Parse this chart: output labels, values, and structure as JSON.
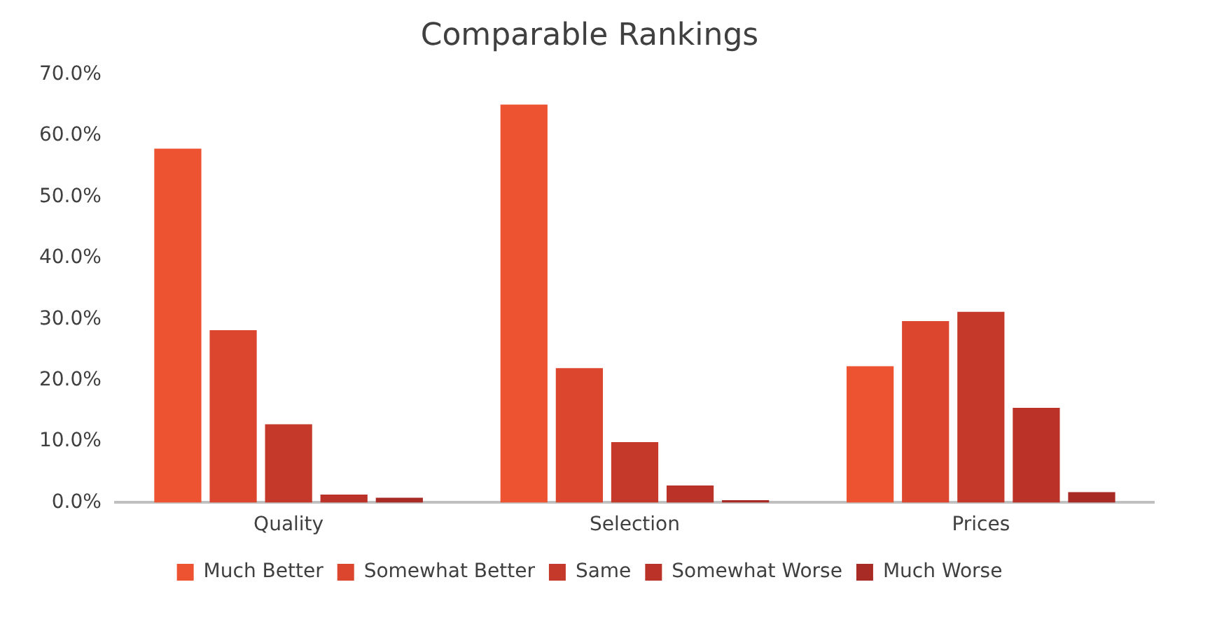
{
  "chart_data": {
    "type": "bar",
    "title": "Comparable Rankings",
    "categories": [
      "Quality",
      "Selection",
      "Prices"
    ],
    "series": [
      {
        "name": "Much Better",
        "color": "#ee5331",
        "values": [
          57.9,
          65.1,
          22.3
        ]
      },
      {
        "name": "Somewhat Better",
        "color": "#dc462e",
        "values": [
          28.2,
          22.0,
          29.7
        ]
      },
      {
        "name": "Same",
        "color": "#c4392a",
        "values": [
          12.8,
          9.9,
          31.2
        ]
      },
      {
        "name": "Somewhat Worse",
        "color": "#bb3328",
        "values": [
          1.3,
          2.8,
          15.5
        ]
      },
      {
        "name": "Much Worse",
        "color": "#a82b26",
        "values": [
          0.8,
          0.4,
          1.7
        ]
      }
    ],
    "ylim": [
      0,
      70
    ],
    "yticks": [
      {
        "value": 0,
        "label": "0.0%"
      },
      {
        "value": 10,
        "label": "10.0%"
      },
      {
        "value": 20,
        "label": "20.0%"
      },
      {
        "value": 30,
        "label": "30.0%"
      },
      {
        "value": 40,
        "label": "40.0%"
      },
      {
        "value": 50,
        "label": "50.0%"
      },
      {
        "value": 60,
        "label": "60.0%"
      },
      {
        "value": 70,
        "label": "70.0%"
      }
    ],
    "grid": false,
    "legend": "bottom"
  }
}
